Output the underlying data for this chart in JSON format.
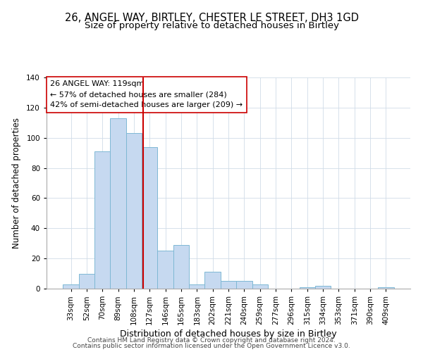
{
  "title1": "26, ANGEL WAY, BIRTLEY, CHESTER LE STREET, DH3 1GD",
  "title2": "Size of property relative to detached houses in Birtley",
  "xlabel": "Distribution of detached houses by size in Birtley",
  "ylabel": "Number of detached properties",
  "categories": [
    "33sqm",
    "52sqm",
    "70sqm",
    "89sqm",
    "108sqm",
    "127sqm",
    "146sqm",
    "165sqm",
    "183sqm",
    "202sqm",
    "221sqm",
    "240sqm",
    "259sqm",
    "277sqm",
    "296sqm",
    "315sqm",
    "334sqm",
    "353sqm",
    "371sqm",
    "390sqm",
    "409sqm"
  ],
  "values": [
    3,
    10,
    91,
    113,
    103,
    94,
    25,
    29,
    3,
    11,
    5,
    5,
    3,
    0,
    0,
    1,
    2,
    0,
    0,
    0,
    1
  ],
  "bar_color": "#c6d9f0",
  "bar_edge_color": "#7eb8d4",
  "highlight_line_color": "#cc0000",
  "ylim": [
    0,
    140
  ],
  "yticks": [
    0,
    20,
    40,
    60,
    80,
    100,
    120,
    140
  ],
  "annotation_line1": "26 ANGEL WAY: 119sqm",
  "annotation_line2": "← 57% of detached houses are smaller (284)",
  "annotation_line3": "42% of semi-detached houses are larger (209) →",
  "footer1": "Contains HM Land Registry data © Crown copyright and database right 2024.",
  "footer2": "Contains public sector information licensed under the Open Government Licence v3.0.",
  "title1_fontsize": 10.5,
  "title2_fontsize": 9.5,
  "xlabel_fontsize": 9,
  "ylabel_fontsize": 8.5,
  "tick_fontsize": 7.5,
  "annot_fontsize": 8,
  "footer_fontsize": 6.5,
  "red_line_xindex": 4.57
}
